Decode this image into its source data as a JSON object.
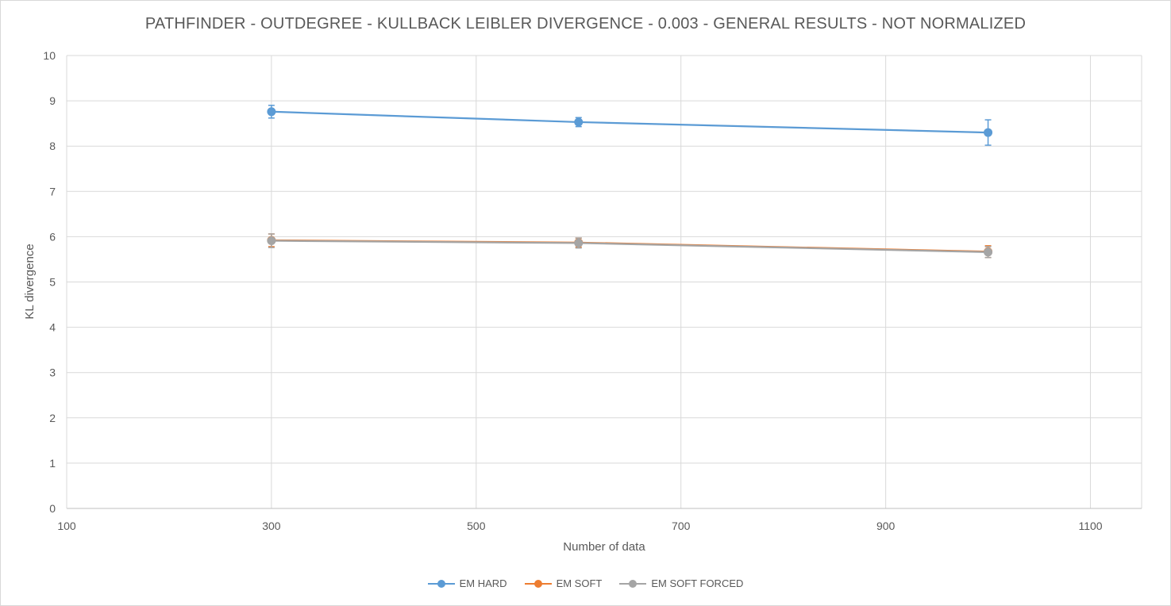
{
  "chart_data": {
    "type": "scatter",
    "title": "PATHFINDER - OUTDEGREE  - KULLBACK LEIBLER DIVERGENCE - 0.003 - GENERAL RESULTS - NOT NORMALIZED",
    "xlabel": "Number of data",
    "ylabel": "KL divergence",
    "xlim": [
      100,
      1150
    ],
    "ylim": [
      0,
      10
    ],
    "x_ticks": [
      100,
      300,
      500,
      700,
      900,
      1100
    ],
    "y_ticks": [
      0,
      1,
      2,
      3,
      4,
      5,
      6,
      7,
      8,
      9,
      10
    ],
    "grid": true,
    "lines": "straight lines with markers and error bars",
    "legend_position": "bottom",
    "series": [
      {
        "name": "EM HARD",
        "color": "#5b9bd5",
        "x": [
          300,
          600,
          1000
        ],
        "y": [
          8.76,
          8.53,
          8.3
        ],
        "error": [
          0.14,
          0.1,
          0.28
        ]
      },
      {
        "name": "EM SOFT",
        "color": "#ed7d31",
        "x": [
          300,
          600,
          1000
        ],
        "y": [
          5.92,
          5.87,
          5.67
        ],
        "error": [
          0.14,
          0.1,
          0.13
        ]
      },
      {
        "name": "EM SOFT FORCED",
        "color": "#a5a5a5",
        "x": [
          300,
          600,
          1000
        ],
        "y": [
          5.91,
          5.86,
          5.66
        ],
        "error": [
          0.15,
          0.11,
          0.12
        ]
      }
    ]
  }
}
